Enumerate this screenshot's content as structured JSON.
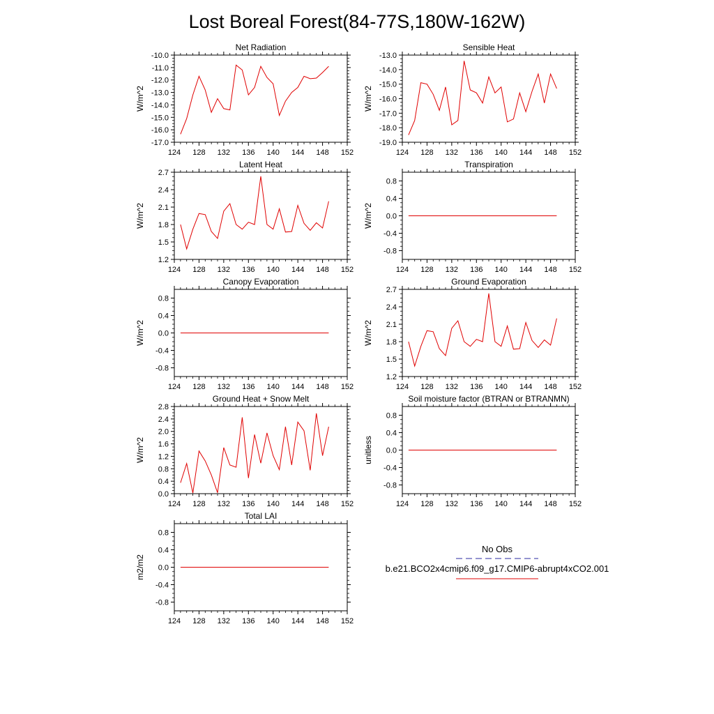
{
  "figure": {
    "title": "Lost Boreal Forest(84-77S,180W-162W)",
    "line_color": "#e00000",
    "obs_color": "#2a2aa0"
  },
  "legend": {
    "obs_label": "No Obs",
    "model_label": "b.e21.BCO2x4cmip6.f09_g17.CMIP6-abrupt4xCO2.001"
  },
  "chart_data": [
    {
      "type": "line",
      "title": "Net Radiation",
      "ylabel": "W/m^2",
      "xlim": [
        124,
        152
      ],
      "ylim": [
        -17.0,
        -10.0
      ],
      "xticks": [
        "124",
        "128",
        "132",
        "136",
        "140",
        "144",
        "148",
        "152"
      ],
      "yticks": [
        "-17.0",
        "-16.0",
        "-15.0",
        "-14.0",
        "-13.0",
        "-12.0",
        "-11.0",
        "-10.0"
      ],
      "x": [
        125,
        126,
        127,
        128,
        129,
        130,
        131,
        132,
        133,
        134,
        135,
        136,
        137,
        138,
        139,
        140,
        141,
        142,
        143,
        144,
        145,
        146,
        147,
        148,
        149
      ],
      "values": [
        -16.35,
        -15.1,
        -13.2,
        -11.7,
        -12.8,
        -14.6,
        -13.5,
        -14.3,
        -14.4,
        -10.8,
        -11.2,
        -13.2,
        -12.6,
        -10.9,
        -11.8,
        -12.3,
        -14.85,
        -13.7,
        -13.0,
        -12.6,
        -11.7,
        -11.9,
        -11.85,
        -11.4,
        -10.9
      ]
    },
    {
      "type": "line",
      "title": "Sensible Heat",
      "ylabel": "W/m^2",
      "xlim": [
        124,
        152
      ],
      "ylim": [
        -19.0,
        -13.0
      ],
      "xticks": [
        "124",
        "128",
        "132",
        "136",
        "140",
        "144",
        "148",
        "152"
      ],
      "yticks": [
        "-19.0",
        "-18.0",
        "-17.0",
        "-16.0",
        "-15.0",
        "-14.0",
        "-13.0"
      ],
      "x": [
        125,
        126,
        127,
        128,
        129,
        130,
        131,
        132,
        133,
        134,
        135,
        136,
        137,
        138,
        139,
        140,
        141,
        142,
        143,
        144,
        145,
        146,
        147,
        148,
        149
      ],
      "values": [
        -18.5,
        -17.5,
        -14.9,
        -15.0,
        -15.7,
        -16.8,
        -15.2,
        -17.8,
        -17.5,
        -13.4,
        -15.4,
        -15.6,
        -16.3,
        -14.5,
        -15.6,
        -15.2,
        -17.6,
        -17.4,
        -15.6,
        -16.9,
        -15.5,
        -14.3,
        -16.3,
        -14.3,
        -15.3
      ]
    },
    {
      "type": "line",
      "title": "Latent Heat",
      "ylabel": "W/m^2",
      "xlim": [
        124,
        152
      ],
      "ylim": [
        1.2,
        2.7
      ],
      "xticks": [
        "124",
        "128",
        "132",
        "136",
        "140",
        "144",
        "148",
        "152"
      ],
      "yticks": [
        "1.2",
        "1.5",
        "1.8",
        "2.1",
        "2.4",
        "2.7"
      ],
      "x": [
        125,
        126,
        127,
        128,
        129,
        130,
        131,
        132,
        133,
        134,
        135,
        136,
        137,
        138,
        139,
        140,
        141,
        142,
        143,
        144,
        145,
        146,
        147,
        148,
        149
      ],
      "values": [
        1.8,
        1.38,
        1.72,
        1.99,
        1.97,
        1.68,
        1.56,
        2.03,
        2.16,
        1.8,
        1.72,
        1.84,
        1.8,
        2.63,
        1.8,
        1.72,
        2.07,
        1.67,
        1.68,
        2.13,
        1.82,
        1.7,
        1.83,
        1.74,
        2.2
      ]
    },
    {
      "type": "line",
      "title": "Transpiration",
      "ylabel": "W/m^2",
      "xlim": [
        124,
        152
      ],
      "ylim": [
        -1.0,
        1.0
      ],
      "xticks": [
        "124",
        "128",
        "132",
        "136",
        "140",
        "144",
        "148",
        "152"
      ],
      "yticks": [
        "-0.8",
        "-0.4",
        "0.0",
        "0.4",
        "0.8"
      ],
      "x": [
        125,
        149
      ],
      "values": [
        0.0,
        0.0
      ]
    },
    {
      "type": "line",
      "title": "Canopy Evaporation",
      "ylabel": "W/m^2",
      "xlim": [
        124,
        152
      ],
      "ylim": [
        -1.0,
        1.0
      ],
      "xticks": [
        "124",
        "128",
        "132",
        "136",
        "140",
        "144",
        "148",
        "152"
      ],
      "yticks": [
        "-0.8",
        "-0.4",
        "0.0",
        "0.4",
        "0.8"
      ],
      "x": [
        125,
        149
      ],
      "values": [
        0.0,
        0.0
      ]
    },
    {
      "type": "line",
      "title": "Ground Evaporation",
      "ylabel": "W/m^2",
      "xlim": [
        124,
        152
      ],
      "ylim": [
        1.2,
        2.7
      ],
      "xticks": [
        "124",
        "128",
        "132",
        "136",
        "140",
        "144",
        "148",
        "152"
      ],
      "yticks": [
        "1.2",
        "1.5",
        "1.8",
        "2.1",
        "2.4",
        "2.7"
      ],
      "x": [
        125,
        126,
        127,
        128,
        129,
        130,
        131,
        132,
        133,
        134,
        135,
        136,
        137,
        138,
        139,
        140,
        141,
        142,
        143,
        144,
        145,
        146,
        147,
        148,
        149
      ],
      "values": [
        1.8,
        1.38,
        1.72,
        1.99,
        1.97,
        1.68,
        1.56,
        2.03,
        2.16,
        1.8,
        1.72,
        1.84,
        1.8,
        2.63,
        1.8,
        1.72,
        2.07,
        1.67,
        1.68,
        2.13,
        1.82,
        1.7,
        1.83,
        1.74,
        2.2
      ]
    },
    {
      "type": "line",
      "title": "Ground Heat + Snow Melt",
      "ylabel": "W/m^2",
      "xlim": [
        124,
        152
      ],
      "ylim": [
        0.0,
        2.8
      ],
      "xticks": [
        "124",
        "128",
        "132",
        "136",
        "140",
        "144",
        "148",
        "152"
      ],
      "yticks": [
        "0.0",
        "0.4",
        "0.8",
        "1.2",
        "1.6",
        "2.0",
        "2.4",
        "2.8"
      ],
      "x": [
        125,
        126,
        127,
        128,
        129,
        130,
        131,
        132,
        133,
        134,
        135,
        136,
        137,
        138,
        139,
        140,
        141,
        142,
        143,
        144,
        145,
        146,
        147,
        148,
        149
      ],
      "values": [
        0.35,
        0.97,
        0.02,
        1.37,
        1.05,
        0.6,
        0.03,
        1.48,
        0.92,
        0.85,
        2.45,
        0.5,
        1.9,
        0.98,
        1.95,
        1.22,
        0.77,
        2.15,
        0.92,
        2.3,
        2.02,
        0.75,
        2.58,
        1.22,
        2.15
      ]
    },
    {
      "type": "line",
      "title": "Soil moisture factor (BTRAN or BTRANMN)",
      "ylabel": "unitless",
      "xlim": [
        124,
        152
      ],
      "ylim": [
        -1.0,
        1.0
      ],
      "xticks": [
        "124",
        "128",
        "132",
        "136",
        "140",
        "144",
        "148",
        "152"
      ],
      "yticks": [
        "-0.8",
        "-0.4",
        "0.0",
        "0.4",
        "0.8"
      ],
      "x": [
        125,
        149
      ],
      "values": [
        0.0,
        0.0
      ]
    },
    {
      "type": "line",
      "title": "Total LAI",
      "ylabel": "m2/m2",
      "xlim": [
        124,
        152
      ],
      "ylim": [
        -1.0,
        1.0
      ],
      "xticks": [
        "124",
        "128",
        "132",
        "136",
        "140",
        "144",
        "148",
        "152"
      ],
      "yticks": [
        "-0.8",
        "-0.4",
        "0.0",
        "0.4",
        "0.8"
      ],
      "x": [
        125,
        149
      ],
      "values": [
        0.0,
        0.0
      ]
    }
  ]
}
